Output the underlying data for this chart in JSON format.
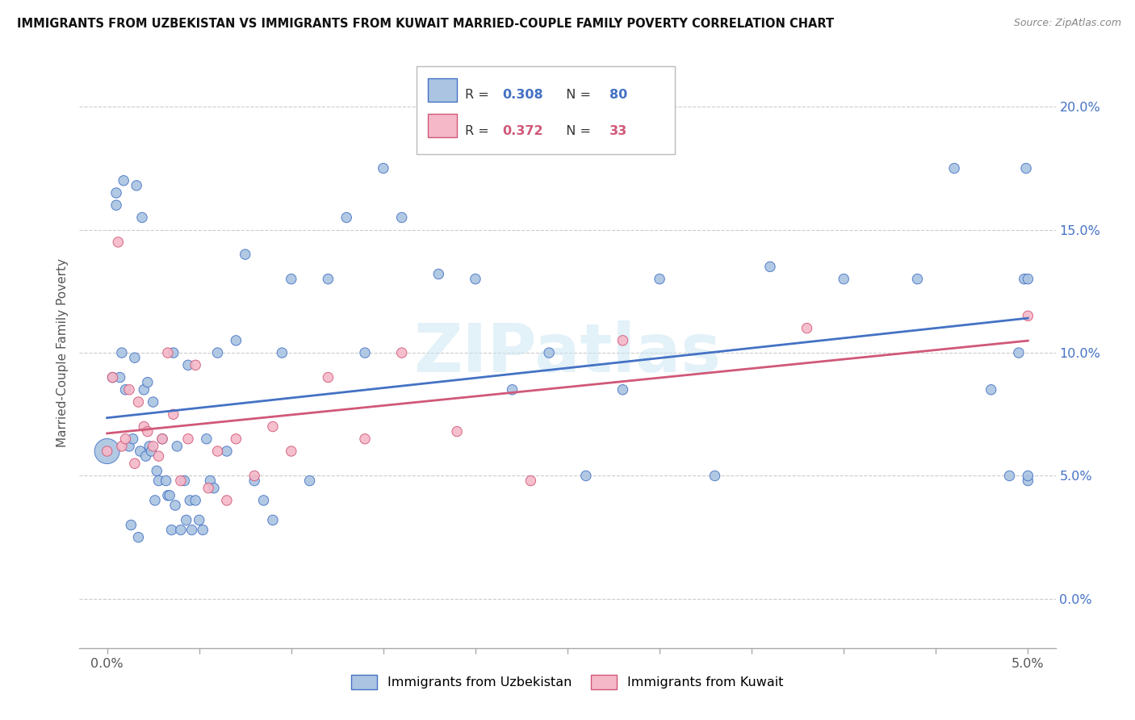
{
  "title": "IMMIGRANTS FROM UZBEKISTAN VS IMMIGRANTS FROM KUWAIT MARRIED-COUPLE FAMILY POVERTY CORRELATION CHART",
  "source": "Source: ZipAtlas.com",
  "ylabel": "Married-Couple Family Poverty",
  "r_uzbekistan": 0.308,
  "n_uzbekistan": 80,
  "r_kuwait": 0.372,
  "n_kuwait": 33,
  "color_uzbekistan": "#aac4e2",
  "color_kuwait": "#f5b8c8",
  "color_line_uzbekistan": "#4472c4",
  "color_line_kuwait": "#d05878",
  "watermark": "ZIPatlas",
  "uzbekistan_x": [
    0.0,
    0.0003,
    0.0005,
    0.0005,
    0.0007,
    0.0008,
    0.0009,
    0.001,
    0.0012,
    0.0013,
    0.0014,
    0.0015,
    0.0016,
    0.0017,
    0.0018,
    0.0019,
    0.002,
    0.0021,
    0.0022,
    0.0023,
    0.0024,
    0.0025,
    0.0026,
    0.0027,
    0.0028,
    0.003,
    0.0032,
    0.0033,
    0.0034,
    0.0035,
    0.0036,
    0.0037,
    0.0038,
    0.004,
    0.0042,
    0.0043,
    0.0044,
    0.0045,
    0.0046,
    0.0048,
    0.005,
    0.0052,
    0.0054,
    0.0056,
    0.0058,
    0.006,
    0.0065,
    0.007,
    0.0075,
    0.008,
    0.0085,
    0.009,
    0.0095,
    0.01,
    0.011,
    0.012,
    0.013,
    0.014,
    0.015,
    0.016,
    0.018,
    0.02,
    0.022,
    0.024,
    0.026,
    0.028,
    0.03,
    0.033,
    0.036,
    0.04,
    0.044,
    0.046,
    0.048,
    0.049,
    0.0495,
    0.0498,
    0.0499,
    0.05,
    0.05,
    0.05
  ],
  "uzbekistan_y": [
    0.06,
    0.09,
    0.16,
    0.165,
    0.09,
    0.1,
    0.17,
    0.085,
    0.062,
    0.03,
    0.065,
    0.098,
    0.168,
    0.025,
    0.06,
    0.155,
    0.085,
    0.058,
    0.088,
    0.062,
    0.06,
    0.08,
    0.04,
    0.052,
    0.048,
    0.065,
    0.048,
    0.042,
    0.042,
    0.028,
    0.1,
    0.038,
    0.062,
    0.028,
    0.048,
    0.032,
    0.095,
    0.04,
    0.028,
    0.04,
    0.032,
    0.028,
    0.065,
    0.048,
    0.045,
    0.1,
    0.06,
    0.105,
    0.14,
    0.048,
    0.04,
    0.032,
    0.1,
    0.13,
    0.048,
    0.13,
    0.155,
    0.1,
    0.175,
    0.155,
    0.132,
    0.13,
    0.085,
    0.1,
    0.05,
    0.085,
    0.13,
    0.05,
    0.135,
    0.13,
    0.13,
    0.175,
    0.085,
    0.05,
    0.1,
    0.13,
    0.175,
    0.13,
    0.048,
    0.05
  ],
  "uzbekistan_sizes": [
    500,
    80,
    80,
    80,
    80,
    80,
    80,
    80,
    80,
    80,
    80,
    80,
    80,
    80,
    80,
    80,
    80,
    80,
    80,
    80,
    80,
    80,
    80,
    80,
    80,
    80,
    80,
    80,
    80,
    80,
    80,
    80,
    80,
    80,
    80,
    80,
    80,
    80,
    80,
    80,
    80,
    80,
    80,
    80,
    80,
    80,
    80,
    80,
    80,
    80,
    80,
    80,
    80,
    80,
    80,
    80,
    80,
    80,
    80,
    80,
    80,
    80,
    80,
    80,
    80,
    80,
    80,
    80,
    80,
    80,
    80,
    80,
    80,
    80,
    80,
    80,
    80,
    80,
    80,
    80
  ],
  "kuwait_x": [
    0.0,
    0.0003,
    0.0006,
    0.0008,
    0.001,
    0.0012,
    0.0015,
    0.0017,
    0.002,
    0.0022,
    0.0025,
    0.0028,
    0.003,
    0.0033,
    0.0036,
    0.004,
    0.0044,
    0.0048,
    0.0055,
    0.006,
    0.0065,
    0.007,
    0.008,
    0.009,
    0.01,
    0.012,
    0.014,
    0.016,
    0.019,
    0.023,
    0.028,
    0.038,
    0.05
  ],
  "kuwait_y": [
    0.06,
    0.09,
    0.145,
    0.062,
    0.065,
    0.085,
    0.055,
    0.08,
    0.07,
    0.068,
    0.062,
    0.058,
    0.065,
    0.1,
    0.075,
    0.048,
    0.065,
    0.095,
    0.045,
    0.06,
    0.04,
    0.065,
    0.05,
    0.07,
    0.06,
    0.09,
    0.065,
    0.1,
    0.068,
    0.048,
    0.105,
    0.11,
    0.115
  ],
  "kuwait_sizes": [
    80,
    80,
    80,
    80,
    80,
    80,
    80,
    80,
    80,
    80,
    80,
    80,
    80,
    80,
    80,
    80,
    80,
    80,
    80,
    80,
    80,
    80,
    80,
    80,
    80,
    80,
    80,
    80,
    80,
    80,
    80,
    80,
    80
  ],
  "xlim": [
    0.0,
    0.05
  ],
  "ylim": [
    -0.02,
    0.22
  ],
  "y_ticks": [
    0.0,
    0.05,
    0.1,
    0.15,
    0.2
  ],
  "y_tick_labels": [
    "0.0%",
    "5.0%",
    "10.0%",
    "15.0%",
    "20.0%"
  ]
}
